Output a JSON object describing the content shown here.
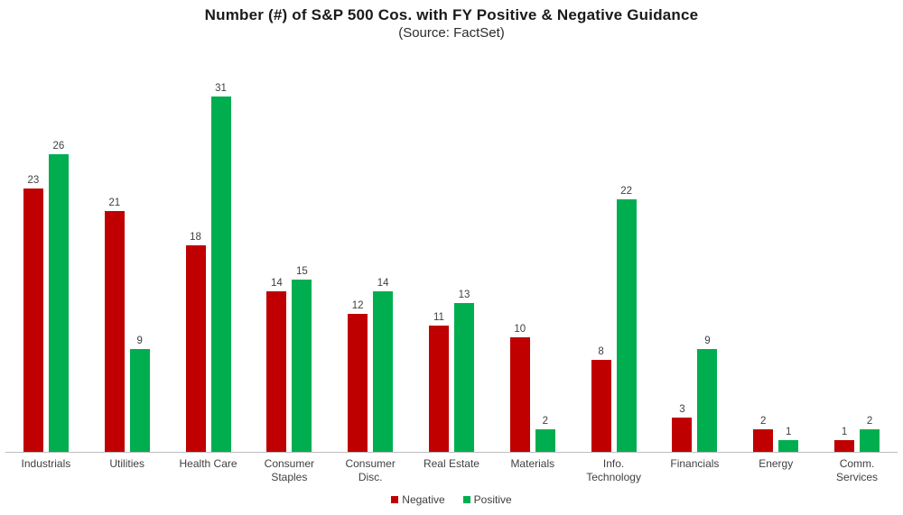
{
  "chart_data": {
    "type": "bar",
    "title": "Number (#) of S&P 500 Cos. with FY Positive & Negative Guidance",
    "subtitle": "(Source: FactSet)",
    "categories": [
      "Industrials",
      "Utilities",
      "Health Care",
      "Consumer\nStaples",
      "Consumer\nDisc.",
      "Real Estate",
      "Materials",
      "Info.\nTechnology",
      "Financials",
      "Energy",
      "Comm.\nServices"
    ],
    "series": [
      {
        "name": "Negative",
        "color": "#C00000",
        "values": [
          23,
          21,
          18,
          14,
          12,
          11,
          10,
          8,
          3,
          2,
          1
        ]
      },
      {
        "name": "Positive",
        "color": "#00AE50",
        "values": [
          26,
          9,
          31,
          15,
          14,
          13,
          2,
          22,
          9,
          1,
          2
        ]
      }
    ],
    "ylim": [
      0,
      31
    ],
    "grid": false,
    "axis_line_color": "#bdbdbd",
    "data_labels": true,
    "legend_position": "bottom"
  }
}
